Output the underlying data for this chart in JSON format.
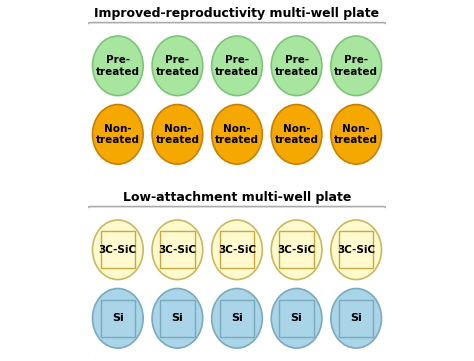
{
  "title1": "Improved-reproductivity multi-well plate",
  "title2": "Low-attachment multi-well plate",
  "n_cols": 5,
  "plate1": {
    "row1_label": "Pre-\ntreated",
    "row2_label": "Non-\ntreated",
    "row1_color": "#a8e6a0",
    "row1_edge": "#7dc47a",
    "row2_color": "#f5a800",
    "row2_edge": "#c98000"
  },
  "plate2": {
    "row1_label": "3C-SiC",
    "row2_label": "Si",
    "row1_circle_color": "#fffacd",
    "row1_circle_edge": "#c8b860",
    "row2_circle_color": "#aad4e8",
    "row2_circle_edge": "#7aaabb",
    "row1_rect_color": "#fffacd",
    "row1_rect_edge": "#c8a840",
    "row2_rect_color": "#aad4e8",
    "row2_rect_edge": "#7aaabb"
  },
  "background": "#ffffff",
  "box_edge": "#aaaaaa",
  "title_fontsize": 9,
  "label_fontsize": 7.5
}
